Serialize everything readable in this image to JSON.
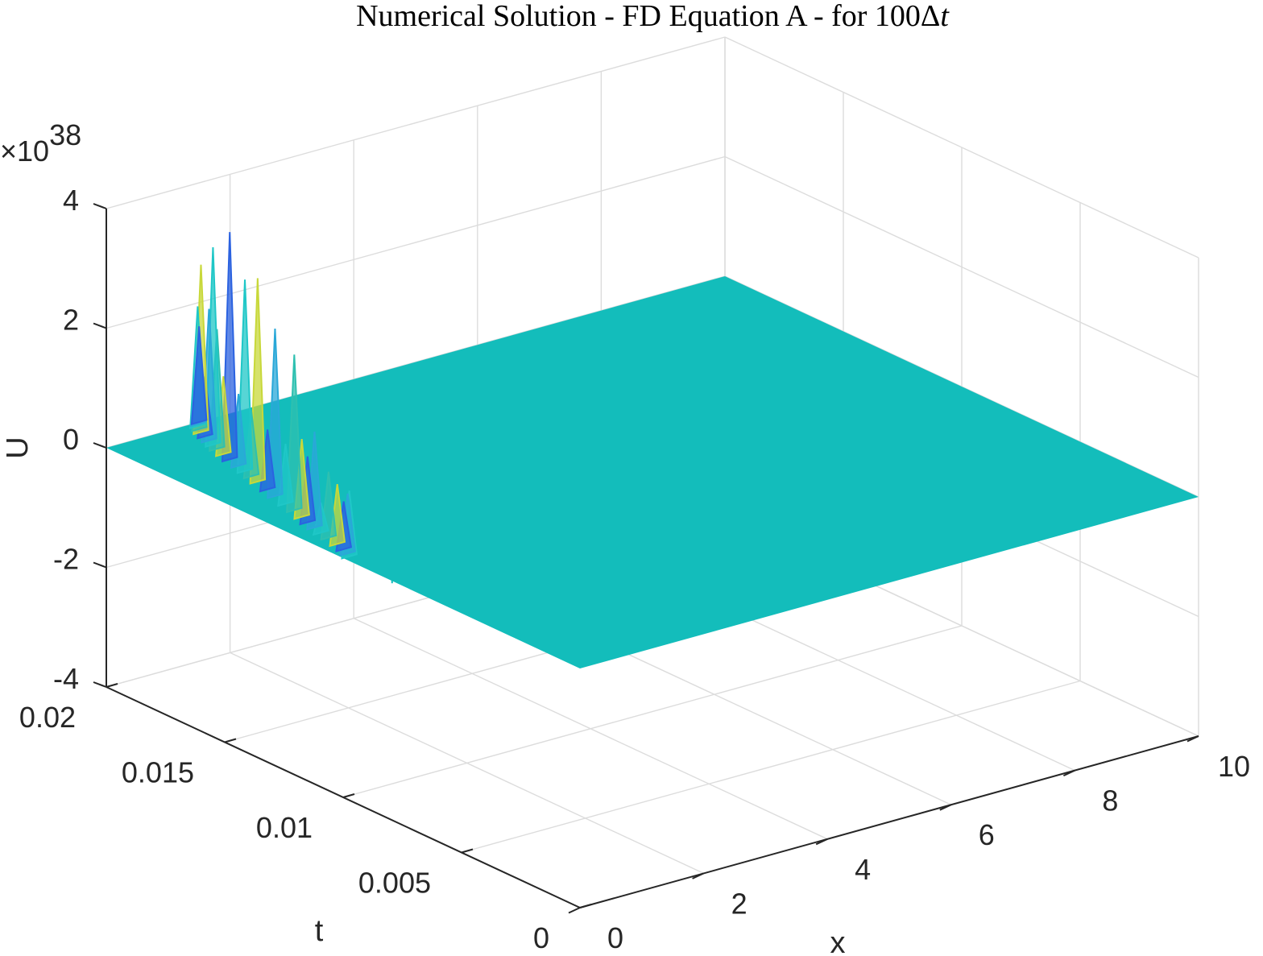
{
  "chart_data": {
    "type": "surface3d",
    "title": "Numerical Solution - FD Equation A - for 100Δt",
    "title_parts": {
      "main": "Numerical Solution - FD Equation A - for 100Δ",
      "italic": "t"
    },
    "xlabel": "x",
    "ylabel": "t",
    "zlabel": "U",
    "z_exponent_text": "×10",
    "z_exponent_power": "38",
    "xlim": [
      0,
      10
    ],
    "ylim": [
      0,
      0.02
    ],
    "zlim": [
      -4,
      4
    ],
    "x_ticks": [
      0,
      2,
      4,
      6,
      8,
      10
    ],
    "x_tick_labels": [
      "0",
      "2",
      "4",
      "6",
      "8",
      "10"
    ],
    "y_ticks": [
      0,
      0.005,
      0.01,
      0.015,
      0.02
    ],
    "y_tick_labels": [
      "0",
      "0.005",
      "0.01",
      "0.015",
      "0.02"
    ],
    "z_ticks": [
      -4,
      -2,
      0,
      2,
      4
    ],
    "z_tick_labels": [
      "-4",
      "-2",
      "0",
      "2",
      "4"
    ],
    "grid": true,
    "surface_color": "#13bdbb",
    "spike_colors": [
      "#1fc7c7",
      "#2aa8d8",
      "#2b62e0",
      "#c8d83a",
      "#2ec0b0"
    ],
    "baseline_value": 0,
    "spikes": [
      {
        "x": 0.1,
        "t": 0.01,
        "u": 1.1
      },
      {
        "x": 0.15,
        "t": 0.0102,
        "u": 1.0
      },
      {
        "x": 0.2,
        "t": 0.0105,
        "u": 0.8
      },
      {
        "x": 0.25,
        "t": 0.0109,
        "u": 1.0
      },
      {
        "x": 0.3,
        "t": 0.0114,
        "u": 1.1
      },
      {
        "x": 0.33,
        "t": 0.0118,
        "u": 0.5
      },
      {
        "x": 0.38,
        "t": 0.0122,
        "u": 1.6
      },
      {
        "x": 0.42,
        "t": 0.0126,
        "u": 1.1
      },
      {
        "x": 0.48,
        "t": 0.013,
        "u": 1.3
      },
      {
        "x": 0.55,
        "t": 0.0135,
        "u": 2.6
      },
      {
        "x": 0.6,
        "t": 0.014,
        "u": 1.0
      },
      {
        "x": 0.66,
        "t": 0.0146,
        "u": 2.8
      },
      {
        "x": 0.73,
        "t": 0.0151,
        "u": 1.0
      },
      {
        "x": 0.8,
        "t": 0.0157,
        "u": 3.4
      },
      {
        "x": 0.85,
        "t": 0.0161,
        "u": 1.1
      },
      {
        "x": 0.9,
        "t": 0.0165,
        "u": 3.2
      },
      {
        "x": 0.95,
        "t": 0.0169,
        "u": 1.2
      },
      {
        "x": 1.0,
        "t": 0.0174,
        "u": 3.8
      },
      {
        "x": 1.05,
        "t": 0.0178,
        "u": 1.3
      },
      {
        "x": 1.1,
        "t": 0.0182,
        "u": 2.0
      },
      {
        "x": 1.15,
        "t": 0.0185,
        "u": 3.3
      },
      {
        "x": 1.2,
        "t": 0.0188,
        "u": 2.2
      },
      {
        "x": 1.25,
        "t": 0.0191,
        "u": 1.0
      },
      {
        "x": 1.3,
        "t": 0.0194,
        "u": 2.8
      },
      {
        "x": 1.35,
        "t": 0.0196,
        "u": 1.4
      },
      {
        "x": 1.4,
        "t": 0.0198,
        "u": 2.0
      },
      {
        "x": 1.45,
        "t": 0.0199,
        "u": 1.2
      },
      {
        "x": 1.5,
        "t": 0.02,
        "u": 1.6
      }
    ],
    "negative_spike": {
      "x": 0.6,
      "t": 0.0095,
      "u": -0.5
    }
  }
}
